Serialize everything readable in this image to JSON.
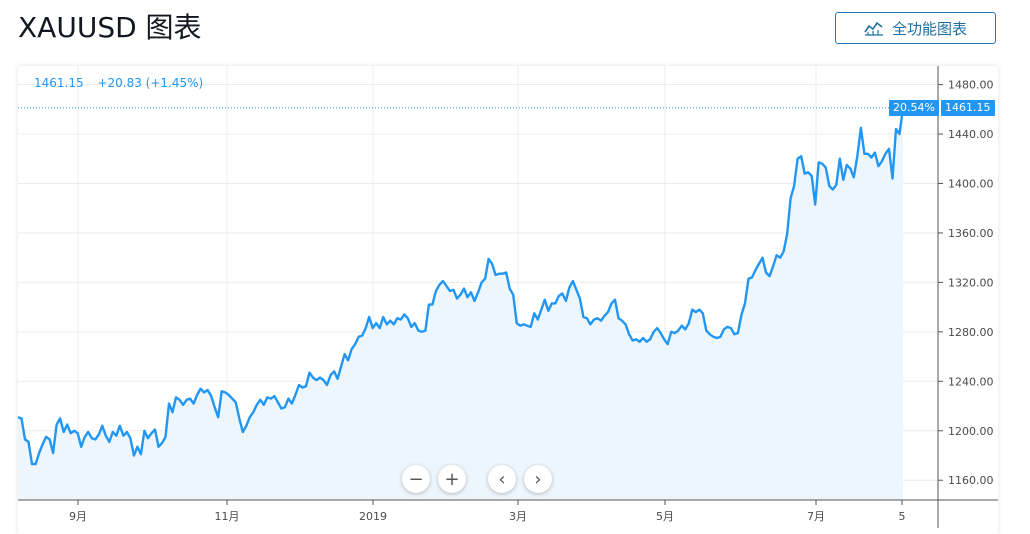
{
  "header": {
    "title": "XAUUSD 图表",
    "full_chart_label": "全功能图表"
  },
  "legend": {
    "price": "1461.15",
    "change": "+20.83 (+1.45%)"
  },
  "badges": {
    "percent": "20.54%",
    "last_price": "1461.15"
  },
  "controls": {
    "zoom_out": "−",
    "zoom_in": "+",
    "prev": "‹",
    "next": "›"
  },
  "colors": {
    "line": "#2196f3",
    "area": "#eef6fd",
    "grid": "#e9ecef",
    "badge": "#2196f3"
  },
  "chart_data": {
    "type": "area",
    "series": [
      {
        "values": [
          1211,
          1210,
          1193,
          1191,
          1173,
          1173,
          1182,
          1189,
          1195,
          1193,
          1182,
          1205,
          1210,
          1199,
          1205,
          1198,
          1200,
          1198,
          1187,
          1195,
          1199,
          1194,
          1193,
          1197,
          1204,
          1196,
          1191,
          1199,
          1196,
          1204,
          1196,
          1199,
          1194,
          1180,
          1187,
          1181,
          1200,
          1194,
          1198,
          1201,
          1187,
          1190,
          1195,
          1222,
          1215,
          1227,
          1225,
          1221,
          1225,
          1226,
          1222,
          1229,
          1234,
          1231,
          1233,
          1228,
          1219,
          1211,
          1232,
          1231,
          1229,
          1226,
          1223,
          1210,
          1199,
          1204,
          1211,
          1215,
          1221,
          1225,
          1221,
          1227,
          1226,
          1228,
          1223,
          1218,
          1219,
          1226,
          1222,
          1229,
          1237,
          1235,
          1236,
          1247,
          1243,
          1241,
          1243,
          1241,
          1237,
          1245,
          1248,
          1242,
          1252,
          1262,
          1257,
          1266,
          1270,
          1276,
          1277,
          1283,
          1292,
          1283,
          1287,
          1283,
          1292,
          1286,
          1289,
          1286,
          1291,
          1290,
          1294,
          1291,
          1284,
          1287,
          1281,
          1280,
          1281,
          1302,
          1302,
          1313,
          1318,
          1321,
          1317,
          1313,
          1314,
          1307,
          1310,
          1315,
          1308,
          1312,
          1305,
          1312,
          1320,
          1323,
          1339,
          1335,
          1326,
          1327,
          1327,
          1328,
          1315,
          1310,
          1287,
          1285,
          1286,
          1285,
          1284,
          1295,
          1290,
          1298,
          1306,
          1297,
          1303,
          1303,
          1309,
          1311,
          1305,
          1316,
          1321,
          1314,
          1307,
          1292,
          1291,
          1286,
          1290,
          1291,
          1289,
          1293,
          1296,
          1303,
          1306,
          1291,
          1289,
          1286,
          1278,
          1273,
          1274,
          1272,
          1275,
          1272,
          1274,
          1280,
          1283,
          1279,
          1274,
          1270,
          1280,
          1279,
          1281,
          1285,
          1282,
          1287,
          1298,
          1296,
          1298,
          1295,
          1281,
          1278,
          1276,
          1275,
          1276,
          1282,
          1284,
          1283,
          1278,
          1279,
          1294,
          1303,
          1323,
          1324,
          1330,
          1335,
          1340,
          1328,
          1325,
          1333,
          1342,
          1340,
          1345,
          1359,
          1388,
          1398,
          1420,
          1422,
          1408,
          1409,
          1406,
          1383,
          1417,
          1416,
          1413,
          1398,
          1395,
          1399,
          1420,
          1403,
          1415,
          1412,
          1405,
          1422,
          1445,
          1424,
          1424,
          1421,
          1425,
          1414,
          1418,
          1424,
          1428,
          1404,
          1444,
          1440,
          1461
        ]
      }
    ],
    "x_tick_labels": [
      "9月",
      "11月",
      "2019",
      "3月",
      "5月",
      "7月",
      "5"
    ],
    "y_tick_labels": [
      "1160.00",
      "1200.00",
      "1240.00",
      "1280.00",
      "1320.00",
      "1360.00",
      "1400.00",
      "1440.00",
      "1480.00"
    ],
    "y_ticks": [
      1160,
      1200,
      1240,
      1280,
      1320,
      1360,
      1400,
      1440,
      1480
    ],
    "ylim": [
      1144,
      1495
    ],
    "last_value": 1461.15,
    "grid": true
  }
}
